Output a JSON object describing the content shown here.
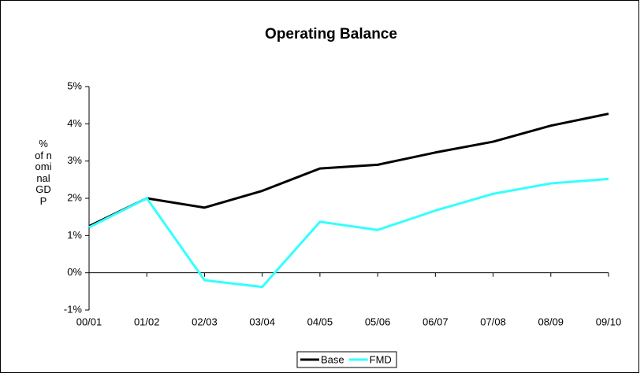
{
  "chart_data": {
    "type": "line",
    "title": "Operating Balance",
    "y_label": "% of nominal GDP",
    "categories": [
      "00/01",
      "01/02",
      "02/03",
      "03/04",
      "04/05",
      "05/06",
      "06/07",
      "07/08",
      "08/09",
      "09/10"
    ],
    "series": [
      {
        "name": "Base",
        "color": "#000000",
        "values": [
          1.25,
          2.0,
          1.75,
          2.2,
          2.8,
          2.9,
          3.23,
          3.52,
          3.95,
          4.27
        ]
      },
      {
        "name": "FMD",
        "color": "#33ffff",
        "values": [
          1.22,
          2.0,
          -0.2,
          -0.38,
          1.37,
          1.15,
          1.67,
          2.12,
          2.4,
          2.52
        ]
      }
    ],
    "ylim": [
      -1,
      5
    ],
    "yticks": [
      {
        "value": -1,
        "label": "-1%"
      },
      {
        "value": 0,
        "label": "0%"
      },
      {
        "value": 1,
        "label": "1%"
      },
      {
        "value": 2,
        "label": "2%"
      },
      {
        "value": 3,
        "label": "3%"
      },
      {
        "value": 4,
        "label": "4%"
      },
      {
        "value": 5,
        "label": "5%"
      }
    ],
    "grid": false,
    "legend": "bottom"
  }
}
